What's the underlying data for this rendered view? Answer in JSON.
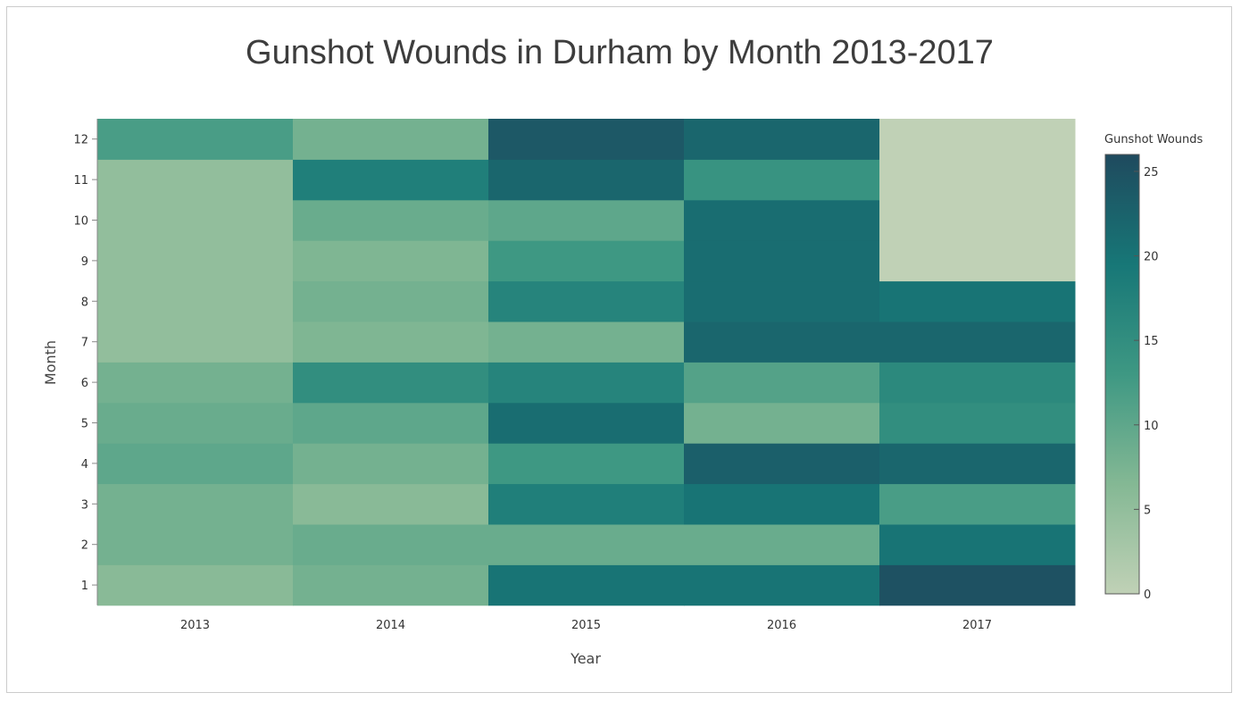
{
  "chart_data": {
    "type": "heatmap",
    "title": "Gunshot Wounds in Durham by Month 2013-2017",
    "xlabel": "Year",
    "ylabel": "Month",
    "x_categories": [
      "2013",
      "2014",
      "2015",
      "2016",
      "2017"
    ],
    "y_categories": [
      "1",
      "2",
      "3",
      "4",
      "5",
      "6",
      "7",
      "8",
      "9",
      "10",
      "11",
      "12"
    ],
    "values": {
      "2013": [
        6,
        8,
        8,
        10,
        9,
        8,
        5,
        5,
        5,
        5,
        5,
        12
      ],
      "2014": [
        8,
        9,
        6,
        8,
        10,
        15,
        7,
        8,
        7,
        9,
        18,
        8
      ],
      "2015": [
        20,
        9,
        18,
        13,
        21,
        17,
        8,
        17,
        13,
        10,
        22,
        24
      ],
      "2016": [
        20,
        9,
        20,
        23,
        8,
        11,
        22,
        21,
        21,
        21,
        14,
        22
      ],
      "2017": [
        25,
        20,
        12,
        22,
        15,
        16,
        22,
        20,
        0,
        0,
        0,
        0
      ]
    },
    "legend": {
      "title": "Gunshot Wounds",
      "min": 0,
      "max": 26,
      "ticks": [
        "0",
        "5",
        "10",
        "15",
        "20",
        "25"
      ],
      "placement": "right"
    },
    "color_scale": [
      "#c0d1b6",
      "#84b894",
      "#3e9883",
      "#177777",
      "#1f4a5e"
    ],
    "grid": false
  }
}
